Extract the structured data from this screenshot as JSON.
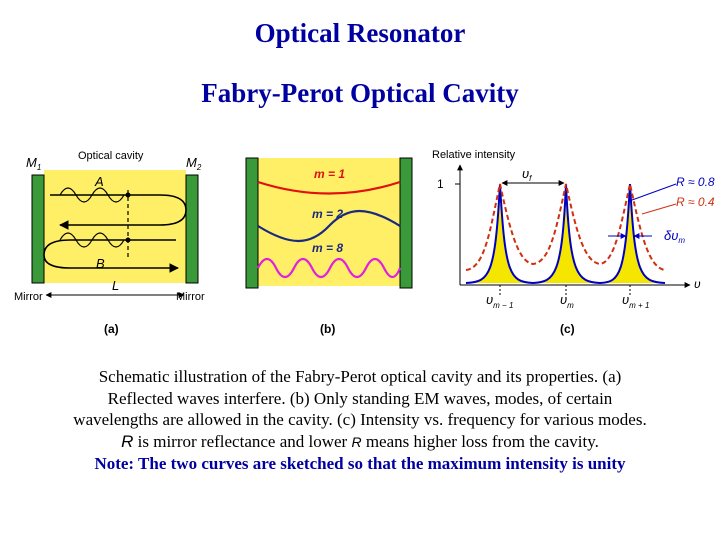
{
  "title": "Optical Resonator",
  "subtitle": "Fabry-Perot Optical Cavity",
  "figure_a": {
    "m1": "M",
    "m1_sub": "1",
    "m2": "M",
    "m2_sub": "2",
    "optical_cavity": "Optical cavity",
    "point_a": "A",
    "point_b": "B",
    "length": "L",
    "mirror_left": "Mirror",
    "mirror_right": "Mirror",
    "panel": "(a)"
  },
  "figure_b": {
    "mode1": "m = 1",
    "mode2": "m = 2",
    "mode8": "m = 8",
    "panel": "(b)"
  },
  "figure_c": {
    "y_label": "Relative intensity",
    "y_tick": "1",
    "x_label": "υ",
    "delta_f": "υ",
    "delta_f_sub": "f",
    "r_high": "R ≈ 0.8",
    "r_low": "R ≈ 0.4",
    "delta_m": "δυ",
    "delta_m_sub": "m",
    "nu_m_minus": "υ",
    "nu_m_minus_sub": "m − 1",
    "nu_m": "υ",
    "nu_m_sub": "m",
    "nu_m_plus": "υ",
    "nu_m_plus_sub": "m + 1",
    "panel": "(c)"
  },
  "caption": {
    "line1": "Schematic illustration of the Fabry-Perot optical cavity and its properties. (a)",
    "line2": "Reflected waves interfere. (b) Only standing EM waves, modes, of certain",
    "line3": "wavelengths are allowed in the cavity. (c) Intensity vs. frequency for various modes.",
    "line4_r": "R",
    "line4_a": " is mirror reflectance and lower ",
    "line4_r2": "R",
    "line4_b": " means higher loss from the cavity.",
    "note": "Note: The two curves are sketched so that the maximum intensity is unity"
  },
  "colors": {
    "title": "#0000a0",
    "cavity_fill": "#ffef66",
    "mirror": "#3a9a3a",
    "mode1": "#e01010",
    "mode2": "#1a2a80",
    "mode8": "#e020e0",
    "curve_high": "#0000c0",
    "curve_low": "#d03010",
    "peak_fill": "#f5e600"
  }
}
